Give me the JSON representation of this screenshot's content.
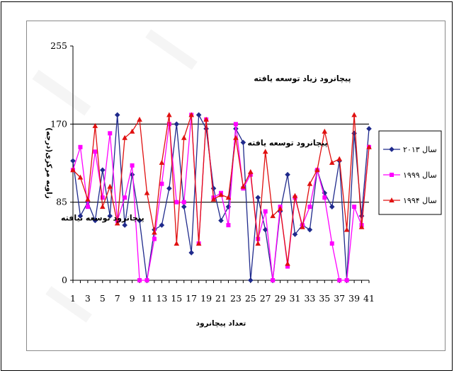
{
  "chart_data": {
    "type": "line",
    "title": "",
    "xlabel": "تعداد پیچانرود",
    "ylabel": "زاویه مرکزی(درجه)",
    "ylim": [
      0,
      255
    ],
    "yticks": [
      0,
      85,
      170,
      255
    ],
    "xlim": [
      1,
      41
    ],
    "xticks": [
      1,
      3,
      5,
      7,
      9,
      11,
      13,
      15,
      17,
      19,
      21,
      23,
      25,
      27,
      29,
      31,
      33,
      35,
      37,
      39,
      41
    ],
    "grid": false,
    "legend_position": "right",
    "reference_lines": [
      {
        "value": 170
      },
      {
        "value": 85
      }
    ],
    "annotations": [
      {
        "text": "پیچانرود زیاد توسعه یافته",
        "x": 32,
        "y": 220
      },
      {
        "text": "پیچانرود توسعه یافته",
        "x": 30,
        "y": 150
      },
      {
        "text": "پیچانرود توسعه نیافته",
        "x": 5,
        "y": 68
      }
    ],
    "series": [
      {
        "name": "سال ۲۰۱۳",
        "color": "#1f2a8c",
        "marker": "diamond",
        "values": [
          130,
          70,
          85,
          65,
          120,
          70,
          180,
          60,
          115,
          65,
          0,
          55,
          60,
          100,
          170,
          80,
          30,
          180,
          165,
          100,
          65,
          80,
          165,
          150,
          0,
          90,
          55,
          0,
          75,
          115,
          50,
          60,
          55,
          120,
          95,
          80,
          130,
          0,
          160,
          70,
          165
        ]
      },
      {
        "name": "سال ۱۹۹۹",
        "color": "#ff00ff",
        "marker": "square",
        "values": [
          120,
          145,
          80,
          140,
          90,
          160,
          65,
          90,
          125,
          0,
          0,
          45,
          105,
          170,
          85,
          85,
          180,
          40,
          175,
          90,
          95,
          60,
          170,
          100,
          115,
          45,
          75,
          0,
          80,
          15,
          90,
          60,
          80,
          120,
          90,
          40,
          0,
          0,
          80,
          60,
          145
        ]
      },
      {
        "name": "سال ۱۹۹۴",
        "color": "#e01010",
        "marker": "triangle",
        "values": [
          120,
          112,
          88,
          168,
          80,
          102,
          62,
          155,
          162,
          175,
          95,
          52,
          128,
          180,
          40,
          155,
          180,
          40,
          175,
          88,
          93,
          90,
          155,
          102,
          118,
          40,
          140,
          70,
          78,
          18,
          92,
          58,
          105,
          120,
          162,
          128,
          132,
          55,
          180,
          58,
          145
        ]
      }
    ]
  }
}
